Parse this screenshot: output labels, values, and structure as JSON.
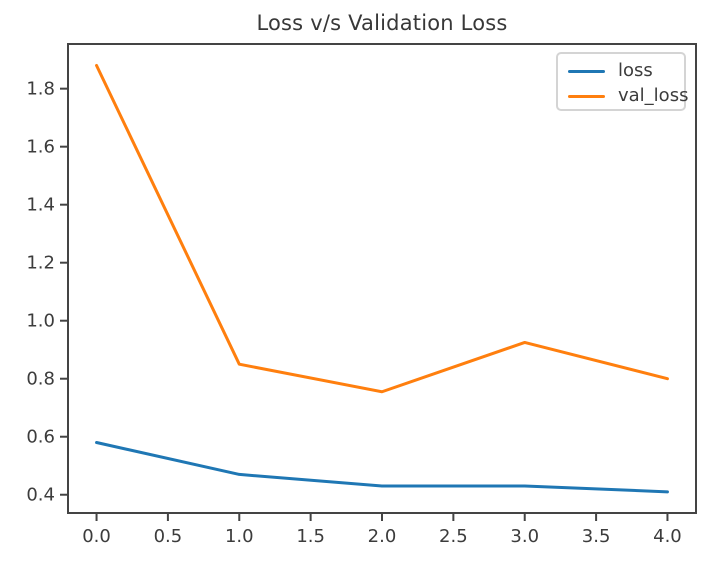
{
  "chart_data": {
    "type": "line",
    "title": "Loss v/s Validation Loss",
    "xlabel": "",
    "ylabel": "",
    "x": [
      0,
      1,
      2,
      3,
      4
    ],
    "series": [
      {
        "name": "loss",
        "color": "#1f77b4",
        "values": [
          0.58,
          0.47,
          0.43,
          0.43,
          0.41
        ]
      },
      {
        "name": "val_loss",
        "color": "#ff7f0e",
        "values": [
          1.88,
          0.85,
          0.755,
          0.925,
          0.8
        ]
      }
    ],
    "xlim": [
      -0.2,
      4.2
    ],
    "ylim": [
      0.337,
      1.954
    ],
    "x_tick_values": [
      0.0,
      0.5,
      1.0,
      1.5,
      2.0,
      2.5,
      3.0,
      3.5,
      4.0
    ],
    "x_tick_labels": [
      "0.0",
      "0.5",
      "1.0",
      "1.5",
      "2.0",
      "2.5",
      "3.0",
      "3.5",
      "4.0"
    ],
    "y_tick_values": [
      0.4,
      0.6,
      0.8,
      1.0,
      1.2,
      1.4,
      1.6,
      1.8
    ],
    "y_tick_labels": [
      "0.4",
      "0.6",
      "0.8",
      "1.0",
      "1.2",
      "1.4",
      "1.6",
      "1.8"
    ],
    "grid": false,
    "legend_position": "upper right",
    "colors": {
      "spine": "#444444",
      "tick": "#444444",
      "text": "#3c3c3c",
      "legend_border": "#d4d4d4",
      "background": "#ffffff"
    }
  }
}
